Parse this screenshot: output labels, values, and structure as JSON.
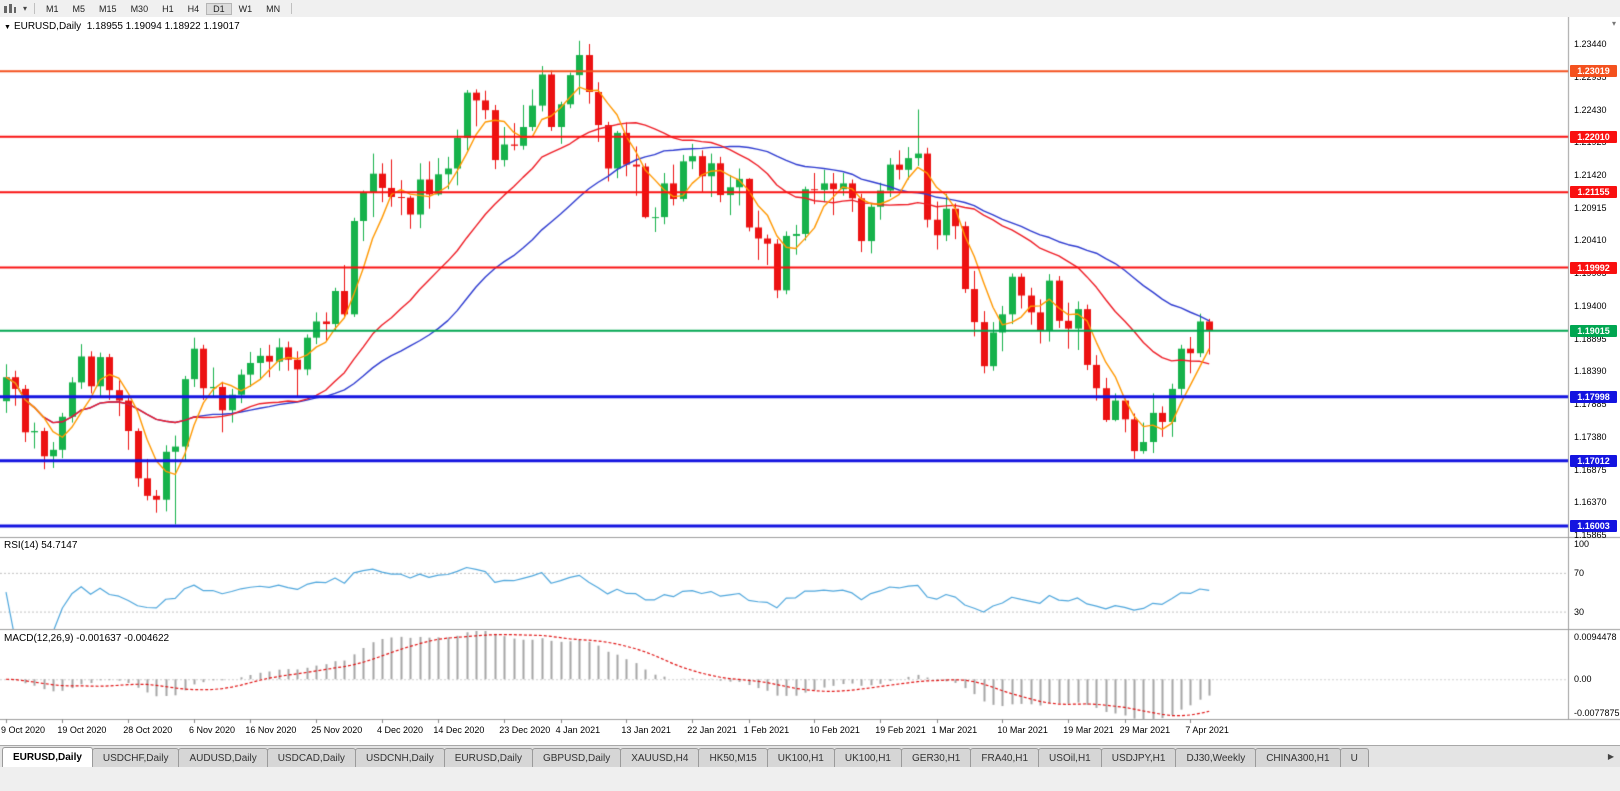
{
  "toolbar": {
    "timeframes": [
      "M1",
      "M5",
      "M15",
      "M30",
      "H1",
      "H4",
      "D1",
      "W1",
      "MN"
    ],
    "active_timeframe": "D1"
  },
  "chart_header": {
    "symbol_title": "EURUSD,Daily",
    "ohlc": "1.18955 1.19094 1.18922 1.19017"
  },
  "chart_data": {
    "type": "candlestick",
    "symbol": "EURUSD",
    "timeframe": "Daily",
    "price_axis": {
      "max": 1.23857,
      "min": 1.15835,
      "tick_labels": [
        "1.23440",
        "1.22935",
        "1.22430",
        "1.21925",
        "1.21420",
        "1.20915",
        "1.20410",
        "1.19905",
        "1.19400",
        "1.18895",
        "1.18390",
        "1.17885",
        "1.17380",
        "1.16875",
        "1.16370",
        "1.15865"
      ]
    },
    "date_labels": [
      {
        "label": "9 Oct 2020",
        "bar": 0
      },
      {
        "label": "19 Oct 2020",
        "bar": 6
      },
      {
        "label": "28 Oct 2020",
        "bar": 13
      },
      {
        "label": "6 Nov 2020",
        "bar": 20
      },
      {
        "label": "16 Nov 2020",
        "bar": 26
      },
      {
        "label": "25 Nov 2020",
        "bar": 33
      },
      {
        "label": "4 Dec 2020",
        "bar": 40
      },
      {
        "label": "14 Dec 2020",
        "bar": 46
      },
      {
        "label": "23 Dec 2020",
        "bar": 53
      },
      {
        "label": "4 Jan 2021",
        "bar": 59
      },
      {
        "label": "13 Jan 2021",
        "bar": 66
      },
      {
        "label": "22 Jan 2021",
        "bar": 73
      },
      {
        "label": "1 Feb 2021",
        "bar": 79
      },
      {
        "label": "10 Feb 2021",
        "bar": 86
      },
      {
        "label": "19 Feb 2021",
        "bar": 93
      },
      {
        "label": "1 Mar 2021",
        "bar": 99
      },
      {
        "label": "10 Mar 2021",
        "bar": 106
      },
      {
        "label": "19 Mar 2021",
        "bar": 113
      },
      {
        "label": "29 Mar 2021",
        "bar": 119
      },
      {
        "label": "7 Apr 2021",
        "bar": 126
      }
    ],
    "candles": [
      [
        1.1793,
        1.185,
        1.1775,
        1.183
      ],
      [
        1.183,
        1.184,
        1.1786,
        1.1812
      ],
      [
        1.1812,
        1.1818,
        1.173,
        1.1745
      ],
      [
        1.1745,
        1.176,
        1.172,
        1.1747
      ],
      [
        1.1747,
        1.1752,
        1.1688,
        1.1708
      ],
      [
        1.1708,
        1.173,
        1.169,
        1.1718
      ],
      [
        1.1718,
        1.1775,
        1.1705,
        1.1769
      ],
      [
        1.1769,
        1.183,
        1.176,
        1.1822
      ],
      [
        1.1822,
        1.1881,
        1.1812,
        1.1862
      ],
      [
        1.1862,
        1.187,
        1.1805,
        1.1816
      ],
      [
        1.1816,
        1.1868,
        1.18,
        1.1861
      ],
      [
        1.1861,
        1.1866,
        1.1795,
        1.181
      ],
      [
        1.181,
        1.1825,
        1.177,
        1.1794
      ],
      [
        1.1794,
        1.18,
        1.1718,
        1.1747
      ],
      [
        1.1747,
        1.1751,
        1.1661,
        1.1674
      ],
      [
        1.1674,
        1.1704,
        1.164,
        1.1647
      ],
      [
        1.1647,
        1.1656,
        1.1621,
        1.1641
      ],
      [
        1.1641,
        1.1725,
        1.1623,
        1.1715
      ],
      [
        1.1715,
        1.174,
        1.1603,
        1.1723
      ],
      [
        1.1723,
        1.1832,
        1.17,
        1.1827
      ],
      [
        1.1827,
        1.1891,
        1.1815,
        1.1874
      ],
      [
        1.1874,
        1.188,
        1.1795,
        1.1813
      ],
      [
        1.1813,
        1.1845,
        1.18,
        1.1815
      ],
      [
        1.1815,
        1.1823,
        1.1745,
        1.1779
      ],
      [
        1.1779,
        1.1812,
        1.176,
        1.1803
      ],
      [
        1.1803,
        1.1842,
        1.179,
        1.1834
      ],
      [
        1.1834,
        1.1869,
        1.1815,
        1.1852
      ],
      [
        1.1852,
        1.1875,
        1.1826,
        1.1863
      ],
      [
        1.1863,
        1.188,
        1.183,
        1.1854
      ],
      [
        1.1854,
        1.189,
        1.184,
        1.1876
      ],
      [
        1.1876,
        1.1885,
        1.184,
        1.1857
      ],
      [
        1.1857,
        1.187,
        1.18,
        1.1842
      ],
      [
        1.1842,
        1.1896,
        1.1833,
        1.1891
      ],
      [
        1.1891,
        1.193,
        1.1881,
        1.1916
      ],
      [
        1.1916,
        1.193,
        1.1886,
        1.1912
      ],
      [
        1.1912,
        1.1968,
        1.1902,
        1.1963
      ],
      [
        1.1963,
        1.2003,
        1.1923,
        1.1927
      ],
      [
        1.1927,
        1.2076,
        1.1923,
        1.2071
      ],
      [
        1.2071,
        1.2118,
        1.204,
        1.2115
      ],
      [
        1.2115,
        1.2175,
        1.2077,
        1.2144
      ],
      [
        1.2144,
        1.216,
        1.21,
        1.2122
      ],
      [
        1.2122,
        1.2166,
        1.2093,
        1.2108
      ],
      [
        1.2108,
        1.2134,
        1.208,
        1.2107
      ],
      [
        1.2107,
        1.211,
        1.2059,
        1.2081
      ],
      [
        1.2081,
        1.216,
        1.206,
        1.2135
      ],
      [
        1.2135,
        1.2163,
        1.209,
        1.2112
      ],
      [
        1.2112,
        1.2168,
        1.211,
        1.2143
      ],
      [
        1.2143,
        1.217,
        1.212,
        1.2152
      ],
      [
        1.2152,
        1.2212,
        1.2126,
        1.2199
      ],
      [
        1.2199,
        1.2273,
        1.218,
        1.2269
      ],
      [
        1.2269,
        1.2274,
        1.2217,
        1.2257
      ],
      [
        1.2257,
        1.2272,
        1.2228,
        1.2242
      ],
      [
        1.2242,
        1.225,
        1.2151,
        1.2165
      ],
      [
        1.2165,
        1.2216,
        1.2155,
        1.2189
      ],
      [
        1.2189,
        1.2222,
        1.218,
        1.2187
      ],
      [
        1.2187,
        1.225,
        1.2181,
        1.2216
      ],
      [
        1.2216,
        1.2274,
        1.221,
        1.2249
      ],
      [
        1.2249,
        1.231,
        1.224,
        1.2297
      ],
      [
        1.2297,
        1.2303,
        1.221,
        1.2216
      ],
      [
        1.2216,
        1.2255,
        1.219,
        1.2251
      ],
      [
        1.2251,
        1.23,
        1.2245,
        1.2296
      ],
      [
        1.2296,
        1.2349,
        1.2266,
        1.2327
      ],
      [
        1.2327,
        1.2344,
        1.2252,
        1.227
      ],
      [
        1.227,
        1.2285,
        1.2193,
        1.2219
      ],
      [
        1.2219,
        1.2224,
        1.2132,
        1.2152
      ],
      [
        1.2152,
        1.221,
        1.2137,
        1.2207
      ],
      [
        1.2207,
        1.2223,
        1.214,
        1.2158
      ],
      [
        1.2158,
        1.2186,
        1.211,
        1.2155
      ],
      [
        1.2155,
        1.216,
        1.2075,
        1.2077
      ],
      [
        1.2077,
        1.2092,
        1.2054,
        1.2077
      ],
      [
        1.2077,
        1.2145,
        1.2066,
        1.2129
      ],
      [
        1.2129,
        1.2158,
        1.2095,
        1.2105
      ],
      [
        1.2105,
        1.2173,
        1.2101,
        1.2163
      ],
      [
        1.2163,
        1.219,
        1.2151,
        1.2171
      ],
      [
        1.2171,
        1.218,
        1.2116,
        1.214
      ],
      [
        1.214,
        1.2175,
        1.2108,
        1.216
      ],
      [
        1.216,
        1.217,
        1.21,
        1.2111
      ],
      [
        1.2111,
        1.2142,
        1.208,
        1.2123
      ],
      [
        1.2123,
        1.2152,
        1.2095,
        1.2136
      ],
      [
        1.2136,
        1.2137,
        1.2055,
        1.2061
      ],
      [
        1.2061,
        1.2087,
        1.2011,
        1.2044
      ],
      [
        1.2044,
        1.205,
        1.2003,
        1.2036
      ],
      [
        1.2036,
        1.2043,
        1.1952,
        1.1964
      ],
      [
        1.1964,
        1.2055,
        1.1958,
        1.2048
      ],
      [
        1.2048,
        1.2065,
        1.2019,
        1.2051
      ],
      [
        1.2051,
        1.2124,
        1.2041,
        1.212
      ],
      [
        1.212,
        1.2145,
        1.2097,
        1.2119
      ],
      [
        1.2119,
        1.215,
        1.21,
        1.2129
      ],
      [
        1.2129,
        1.2145,
        1.208,
        1.212
      ],
      [
        1.212,
        1.2145,
        1.211,
        1.2129
      ],
      [
        1.2129,
        1.2135,
        1.2085,
        1.2106
      ],
      [
        1.2106,
        1.2113,
        1.2023,
        1.204
      ],
      [
        1.204,
        1.2097,
        1.2021,
        1.2093
      ],
      [
        1.2093,
        1.213,
        1.2073,
        1.2118
      ],
      [
        1.2118,
        1.2168,
        1.2108,
        1.2158
      ],
      [
        1.2158,
        1.218,
        1.2135,
        1.215
      ],
      [
        1.215,
        1.2185,
        1.2135,
        1.2168
      ],
      [
        1.2168,
        1.2243,
        1.2156,
        1.2175
      ],
      [
        1.2175,
        1.2184,
        1.2061,
        1.2073
      ],
      [
        1.2073,
        1.2101,
        1.2027,
        1.2049
      ],
      [
        1.2049,
        1.2113,
        1.204,
        1.209
      ],
      [
        1.209,
        1.2098,
        1.2043,
        1.2063
      ],
      [
        1.2063,
        1.207,
        1.196,
        1.1966
      ],
      [
        1.1966,
        1.1994,
        1.1893,
        1.1915
      ],
      [
        1.1915,
        1.1932,
        1.1836,
        1.1847
      ],
      [
        1.1847,
        1.1915,
        1.184,
        1.1899
      ],
      [
        1.1899,
        1.194,
        1.187,
        1.1927
      ],
      [
        1.1927,
        1.199,
        1.1912,
        1.1985
      ],
      [
        1.1985,
        1.199,
        1.1936,
        1.1956
      ],
      [
        1.1956,
        1.1968,
        1.1911,
        1.193
      ],
      [
        1.193,
        1.195,
        1.1882,
        1.1902
      ],
      [
        1.1902,
        1.1989,
        1.1885,
        1.1979
      ],
      [
        1.1979,
        1.1986,
        1.1906,
        1.1917
      ],
      [
        1.1917,
        1.1945,
        1.1874,
        1.1905
      ],
      [
        1.1905,
        1.1947,
        1.1872,
        1.1935
      ],
      [
        1.1935,
        1.1942,
        1.1841,
        1.1849
      ],
      [
        1.1849,
        1.1864,
        1.1794,
        1.1813
      ],
      [
        1.1813,
        1.1829,
        1.1761,
        1.1764
      ],
      [
        1.1764,
        1.1805,
        1.1762,
        1.1794
      ],
      [
        1.1794,
        1.1797,
        1.1745,
        1.1765
      ],
      [
        1.1765,
        1.1774,
        1.1704,
        1.1716
      ],
      [
        1.1716,
        1.176,
        1.1712,
        1.173
      ],
      [
        1.173,
        1.1805,
        1.1713,
        1.1775
      ],
      [
        1.1775,
        1.1785,
        1.1738,
        1.1761
      ],
      [
        1.1761,
        1.182,
        1.1738,
        1.1812
      ],
      [
        1.1812,
        1.188,
        1.1802,
        1.1874
      ],
      [
        1.1874,
        1.1892,
        1.1836,
        1.1867
      ],
      [
        1.1867,
        1.1928,
        1.1861,
        1.1916
      ],
      [
        1.1916,
        1.192,
        1.1865,
        1.1902
      ]
    ],
    "overlays": [
      {
        "name": "ma-fast",
        "type": "sma",
        "period": 5,
        "color": "#ff9800"
      },
      {
        "name": "ma-mid",
        "type": "sma",
        "period": 21,
        "color": "#ee1c25"
      },
      {
        "name": "ma-slow",
        "type": "sma",
        "period": 34,
        "color": "#2e3bd0"
      }
    ],
    "hlines": [
      {
        "price": 1.23019,
        "label": "1.23019",
        "color": "#f4511e",
        "width": 2
      },
      {
        "price": 1.2201,
        "label": "1.22010",
        "color": "#f91010",
        "width": 2
      },
      {
        "price": 1.21155,
        "label": "1.21155",
        "color": "#f91010",
        "width": 2
      },
      {
        "price": 1.19992,
        "label": "1.19992",
        "color": "#f91010",
        "width": 2
      },
      {
        "price": 1.19015,
        "label": "1.19015",
        "color": "#00a651",
        "width": 2
      },
      {
        "price": 1.17998,
        "label": "1.17998",
        "color": "#1414e0",
        "width": 3
      },
      {
        "price": 1.17012,
        "label": "1.17012",
        "color": "#1414e0",
        "width": 3
      },
      {
        "price": 1.16003,
        "label": "1.16003",
        "color": "#1414e0",
        "width": 3
      }
    ],
    "indicators": [
      {
        "name": "RSI",
        "label": "RSI(14) 54.7147",
        "period": 14,
        "value": 54.7147,
        "levels": [
          70,
          30
        ],
        "axis_labels": [
          {
            "text": "100",
            "value": 100
          },
          {
            "text": "70",
            "value": 70
          },
          {
            "text": "30",
            "value": 30
          }
        ],
        "range": [
          12,
          105
        ],
        "color": "#4ea6dc"
      },
      {
        "name": "MACD",
        "label": "MACD(12,26,9) -0.001637 -0.004622",
        "fast": 12,
        "slow": 26,
        "signal_period": 9,
        "main_value": -0.001637,
        "signal_value": -0.004622,
        "axis_labels": [
          {
            "text": "0.0094478",
            "value": 0.0094478
          },
          {
            "text": "0.00",
            "value": 0
          },
          {
            "text": "-0.0077875",
            "value": -0.0077875
          }
        ],
        "range": [
          -0.0077875,
          0.0094478
        ],
        "histogram_color": "#a6a6a6",
        "signal_color": "#e01515"
      }
    ]
  },
  "tabs": {
    "active_index": 0,
    "items": [
      "EURUSD,Daily",
      "USDCHF,Daily",
      "AUDUSD,Daily",
      "USDCAD,Daily",
      "USDCNH,Daily",
      "EURUSD,Daily",
      "GBPUSD,Daily",
      "XAUUSD,H4",
      "HK50,M15",
      "UK100,H1",
      "UK100,H1",
      "GER30,H1",
      "FRA40,H1",
      "USOil,H1",
      "USDJPY,H1",
      "DJ30,Weekly",
      "CHINA300,H1",
      "U"
    ],
    "scroll_right": "▶"
  },
  "colors": {
    "up": "#16b24b",
    "down": "#ec1212",
    "background": "#ffffff",
    "panel_border": "#9c9c9c"
  }
}
